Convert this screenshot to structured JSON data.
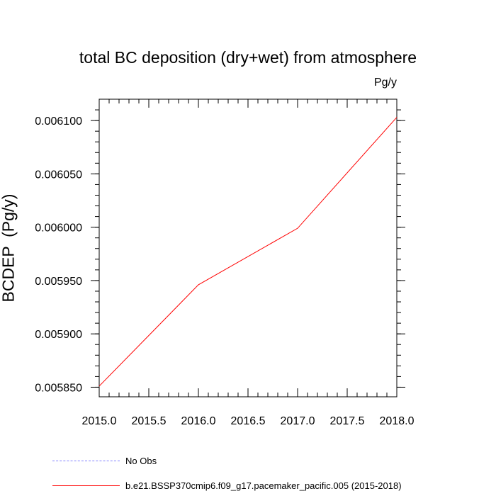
{
  "chart_data": {
    "type": "line",
    "title": "total BC deposition (dry+wet) from atmosphere",
    "units": "Pg/y",
    "ylabel": "BCDEP  (Pg/y)",
    "xlim": [
      2015.0,
      2018.0
    ],
    "ylim": [
      0.005841,
      0.00612
    ],
    "x_ticks": [
      "2015.0",
      "2015.5",
      "2016.0",
      "2016.5",
      "2017.0",
      "2017.5",
      "2018.0"
    ],
    "x_tick_values": [
      2015.0,
      2015.5,
      2016.0,
      2016.5,
      2017.0,
      2017.5,
      2018.0
    ],
    "y_ticks": [
      "0.005850",
      "0.005900",
      "0.005950",
      "0.006000",
      "0.006050",
      "0.006100"
    ],
    "y_tick_values": [
      0.00585,
      0.0059,
      0.00595,
      0.006,
      0.00605,
      0.0061
    ],
    "series": [
      {
        "name": "b.e21.BSSP370cmip6.f09_g17.pacemaker_pacific.005 (2015-2018)",
        "color": "#ff0000",
        "x": [
          2015.0,
          2016.0,
          2017.0,
          2018.0
        ],
        "values": [
          0.005851,
          0.005946,
          0.005999,
          0.006103
        ]
      }
    ],
    "legend": [
      {
        "label": "No Obs",
        "color": "#8080ff",
        "style": "dashed"
      },
      {
        "label": "b.e21.BSSP370cmip6.f09_g17.pacemaker_pacific.005 (2015-2018)",
        "color": "#ff0000",
        "style": "solid"
      }
    ],
    "legend_position": "bottom-left"
  }
}
